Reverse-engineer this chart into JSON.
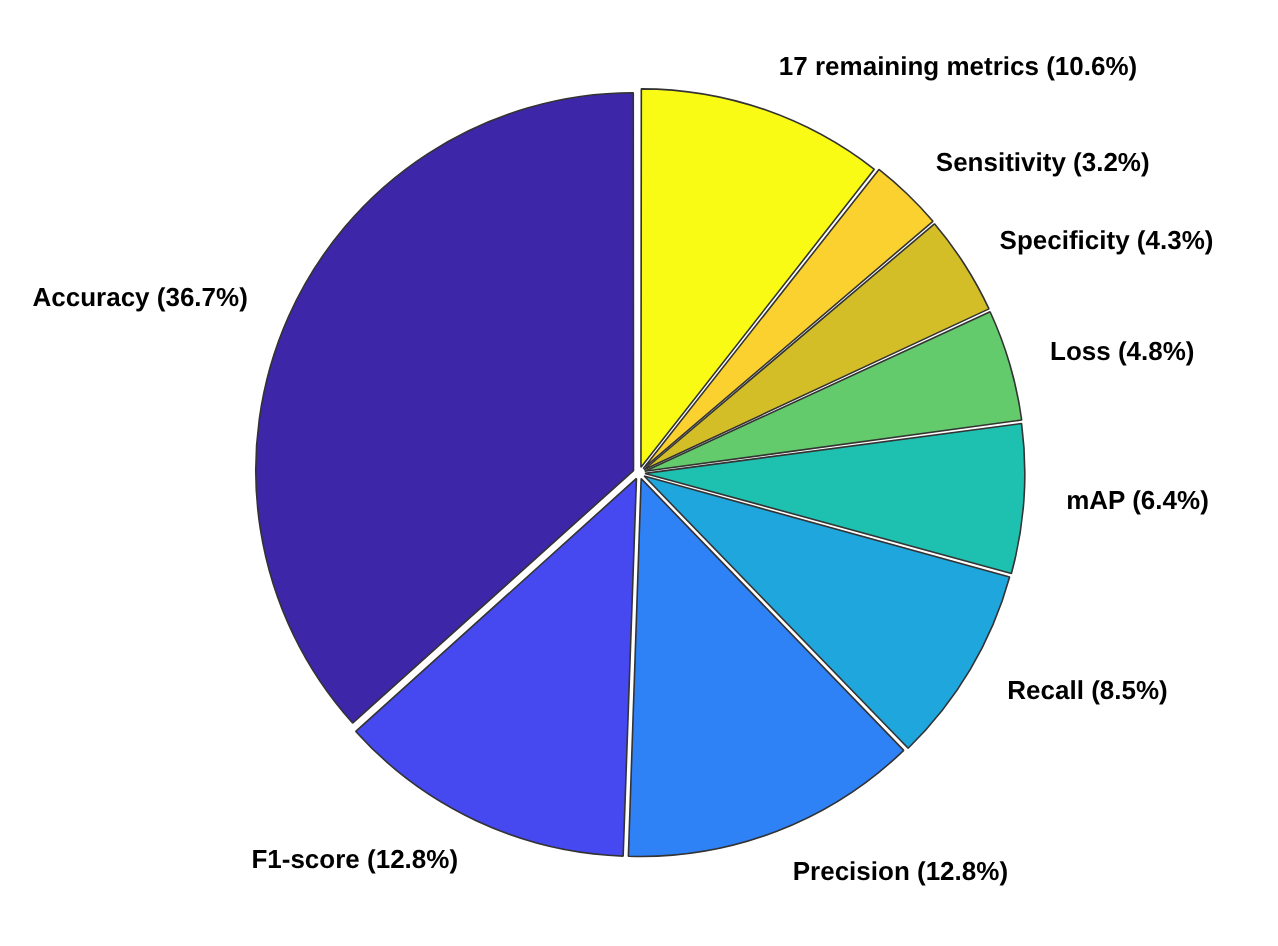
{
  "chart_data": {
    "type": "pie",
    "categories": [
      "17 remaining metrics (10.6%)",
      "Sensitivity (3.2%)",
      "Specificity (4.3%)",
      "Loss (4.8%)",
      "mAP (6.4%)",
      "Recall (8.5%)",
      "Precision (12.8%)",
      "F1-score (12.8%)",
      "Accuracy (36.7%)"
    ],
    "values": [
      10.6,
      3.2,
      4.3,
      4.8,
      6.4,
      8.5,
      12.8,
      12.8,
      36.7
    ],
    "colors": [
      "#f9fb15",
      "#fbd130",
      "#d3be28",
      "#64cb6c",
      "#1ec0b0",
      "#1fa6dd",
      "#2f82f5",
      "#4649ef",
      "#3d26a8"
    ],
    "legend": false
  }
}
